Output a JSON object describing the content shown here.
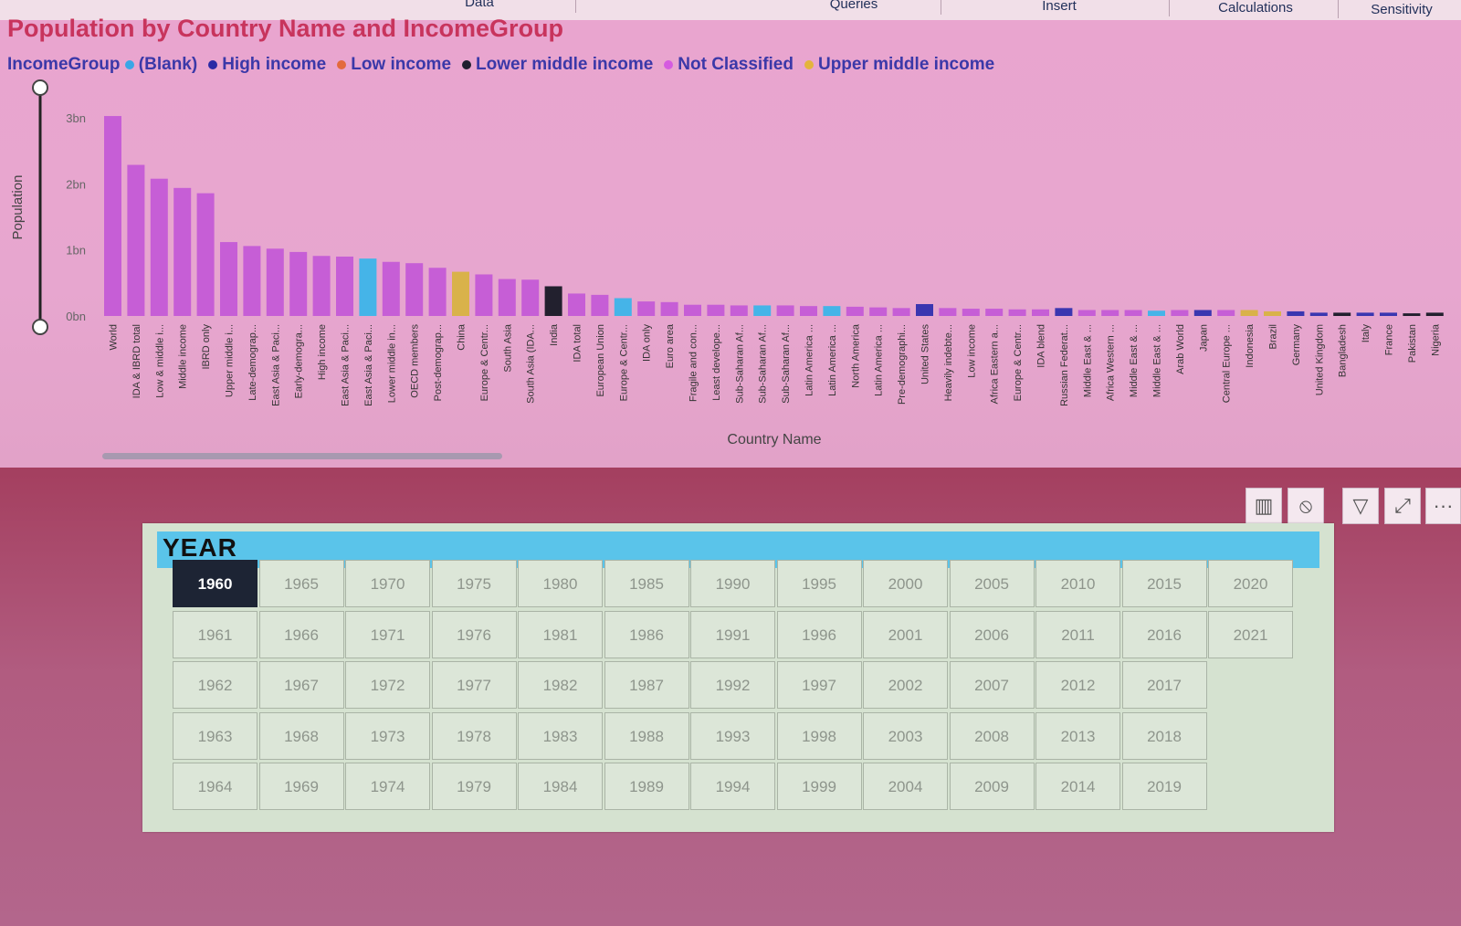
{
  "ribbon": {
    "tabs": [
      "Data",
      "Queries",
      "Insert",
      "Calculations",
      "Sensitivity"
    ]
  },
  "chart_data": {
    "type": "bar",
    "title": "Population by Country Name and IncomeGroup",
    "xlabel": "Country Name",
    "ylabel": "Population",
    "ylim": [
      0,
      3.1
    ],
    "y_unit": "bn",
    "yticks": [
      "0bn",
      "1bn",
      "2bn",
      "3bn"
    ],
    "legend_title": "IncomeGroup",
    "legend": [
      {
        "name": "(Blank)",
        "color": "#3aa6e6"
      },
      {
        "name": "High income",
        "color": "#2a2aa5"
      },
      {
        "name": "Low income",
        "color": "#e36a3c"
      },
      {
        "name": "Lower middle income",
        "color": "#1f1f2e"
      },
      {
        "name": "Not Classified",
        "color": "#d55be0"
      },
      {
        "name": "Upper middle income",
        "color": "#e4b43c"
      }
    ],
    "categories": [
      "World",
      "IDA & IBRD total",
      "Low & middle i...",
      "Middle income",
      "IBRD only",
      "Upper middle i...",
      "Late-demograp...",
      "East Asia & Paci...",
      "Early-demogra...",
      "High income",
      "East Asia & Paci...",
      "East Asia & Paci...",
      "Lower middle in...",
      "OECD members",
      "Post-demograp...",
      "China",
      "Europe & Centr...",
      "South Asia",
      "South Asia (IDA...",
      "India",
      "IDA total",
      "European Union",
      "Europe & Centr...",
      "IDA only",
      "Euro area",
      "Fragile and con...",
      "Least develope...",
      "Sub-Saharan Af...",
      "Sub-Saharan Af...",
      "Sub-Saharan Af...",
      "Latin America ...",
      "Latin America ...",
      "North America",
      "Latin America ...",
      "Pre-demographi...",
      "United States",
      "Heavily indebte...",
      "Low income",
      "Africa Eastern a...",
      "Europe & Centr...",
      "IDA blend",
      "Russian Federat...",
      "Middle East & ...",
      "Africa Western ...",
      "Middle East & ...",
      "Middle East & ...",
      "Arab World",
      "Japan",
      "Central Europe ...",
      "Indonesia",
      "Brazil",
      "Germany",
      "United Kingdom",
      "Bangladesh",
      "Italy",
      "France",
      "Pakistan",
      "Nigeria"
    ],
    "values": [
      3.03,
      2.29,
      2.08,
      1.94,
      1.86,
      1.12,
      1.06,
      1.02,
      0.97,
      0.91,
      0.9,
      0.87,
      0.82,
      0.8,
      0.73,
      0.67,
      0.63,
      0.56,
      0.55,
      0.45,
      0.34,
      0.32,
      0.27,
      0.22,
      0.21,
      0.17,
      0.17,
      0.16,
      0.16,
      0.16,
      0.15,
      0.15,
      0.14,
      0.13,
      0.12,
      0.18,
      0.12,
      0.11,
      0.11,
      0.1,
      0.1,
      0.12,
      0.09,
      0.09,
      0.09,
      0.08,
      0.09,
      0.09,
      0.09,
      0.09,
      0.07,
      0.07,
      0.05,
      0.05,
      0.05,
      0.05,
      0.04,
      0.05
    ],
    "series_group": [
      "(Blank)",
      "(Blank)",
      "(Blank)",
      "(Blank)",
      "(Blank)",
      "(Blank)",
      "(Blank)",
      "(Blank)",
      "(Blank)",
      "(Blank)",
      "(Blank)",
      "(Blank)",
      "(Blank)",
      "(Blank)",
      "(Blank)",
      "Upper middle income",
      "(Blank)",
      "(Blank)",
      "(Blank)",
      "Lower middle income",
      "(Blank)",
      "(Blank)",
      "(Blank)",
      "(Blank)",
      "(Blank)",
      "(Blank)",
      "(Blank)",
      "(Blank)",
      "(Blank)",
      "(Blank)",
      "(Blank)",
      "(Blank)",
      "(Blank)",
      "(Blank)",
      "(Blank)",
      "High income",
      "(Blank)",
      "(Blank)",
      "(Blank)",
      "(Blank)",
      "(Blank)",
      "High income",
      "(Blank)",
      "(Blank)",
      "(Blank)",
      "(Blank)",
      "(Blank)",
      "High income",
      "(Blank)",
      "Upper middle income",
      "Upper middle income",
      "High income",
      "High income",
      "Lower middle income",
      "High income",
      "High income",
      "Lower middle income",
      "Lower middle income"
    ],
    "bar_colors": [
      "#c65ed6",
      "#c65ed6",
      "#c65ed6",
      "#c65ed6",
      "#c65ed6",
      "#c65ed6",
      "#c65ed6",
      "#c65ed6",
      "#c65ed6",
      "#c65ed6",
      "#c65ed6",
      "#45b4e8",
      "#c65ed6",
      "#c65ed6",
      "#c65ed6",
      "#d9b24a",
      "#c65ed6",
      "#c65ed6",
      "#c65ed6",
      "#22202e",
      "#c65ed6",
      "#c65ed6",
      "#45b4e8",
      "#c65ed6",
      "#c65ed6",
      "#c65ed6",
      "#c65ed6",
      "#c65ed6",
      "#45b4e8",
      "#c65ed6",
      "#c65ed6",
      "#45b4e8",
      "#c65ed6",
      "#c65ed6",
      "#c65ed6",
      "#3a36b0",
      "#c65ed6",
      "#c65ed6",
      "#c65ed6",
      "#c65ed6",
      "#c65ed6",
      "#3a36b0",
      "#c65ed6",
      "#c65ed6",
      "#c65ed6",
      "#45b4e8",
      "#c65ed6",
      "#3a36b0",
      "#c65ed6",
      "#d9b24a",
      "#d9b24a",
      "#3a36b0",
      "#3a36b0",
      "#22202e",
      "#3a36b0",
      "#3a36b0",
      "#22202e",
      "#22202e"
    ]
  },
  "slicer": {
    "title": "YEAR",
    "selected": "1960",
    "years": [
      "1960",
      "1961",
      "1962",
      "1963",
      "1964",
      "1965",
      "1966",
      "1967",
      "1968",
      "1969",
      "1970",
      "1971",
      "1972",
      "1973",
      "1974",
      "1975",
      "1976",
      "1977",
      "1978",
      "1979",
      "1980",
      "1981",
      "1982",
      "1983",
      "1984",
      "1985",
      "1986",
      "1987",
      "1988",
      "1989",
      "1990",
      "1991",
      "1992",
      "1993",
      "1994",
      "1995",
      "1996",
      "1997",
      "1998",
      "1999",
      "2000",
      "2001",
      "2002",
      "2003",
      "2004",
      "2005",
      "2006",
      "2007",
      "2008",
      "2009",
      "2010",
      "2011",
      "2012",
      "2013",
      "2014",
      "2015",
      "2016",
      "2017",
      "2018",
      "2019",
      "2020",
      "2021"
    ]
  },
  "toolbar": {
    "icons": [
      "drill-chart-icon",
      "no-entry-icon",
      "filter-icon",
      "focus-mode-icon",
      "more-options-icon"
    ],
    "more_label": "···"
  }
}
